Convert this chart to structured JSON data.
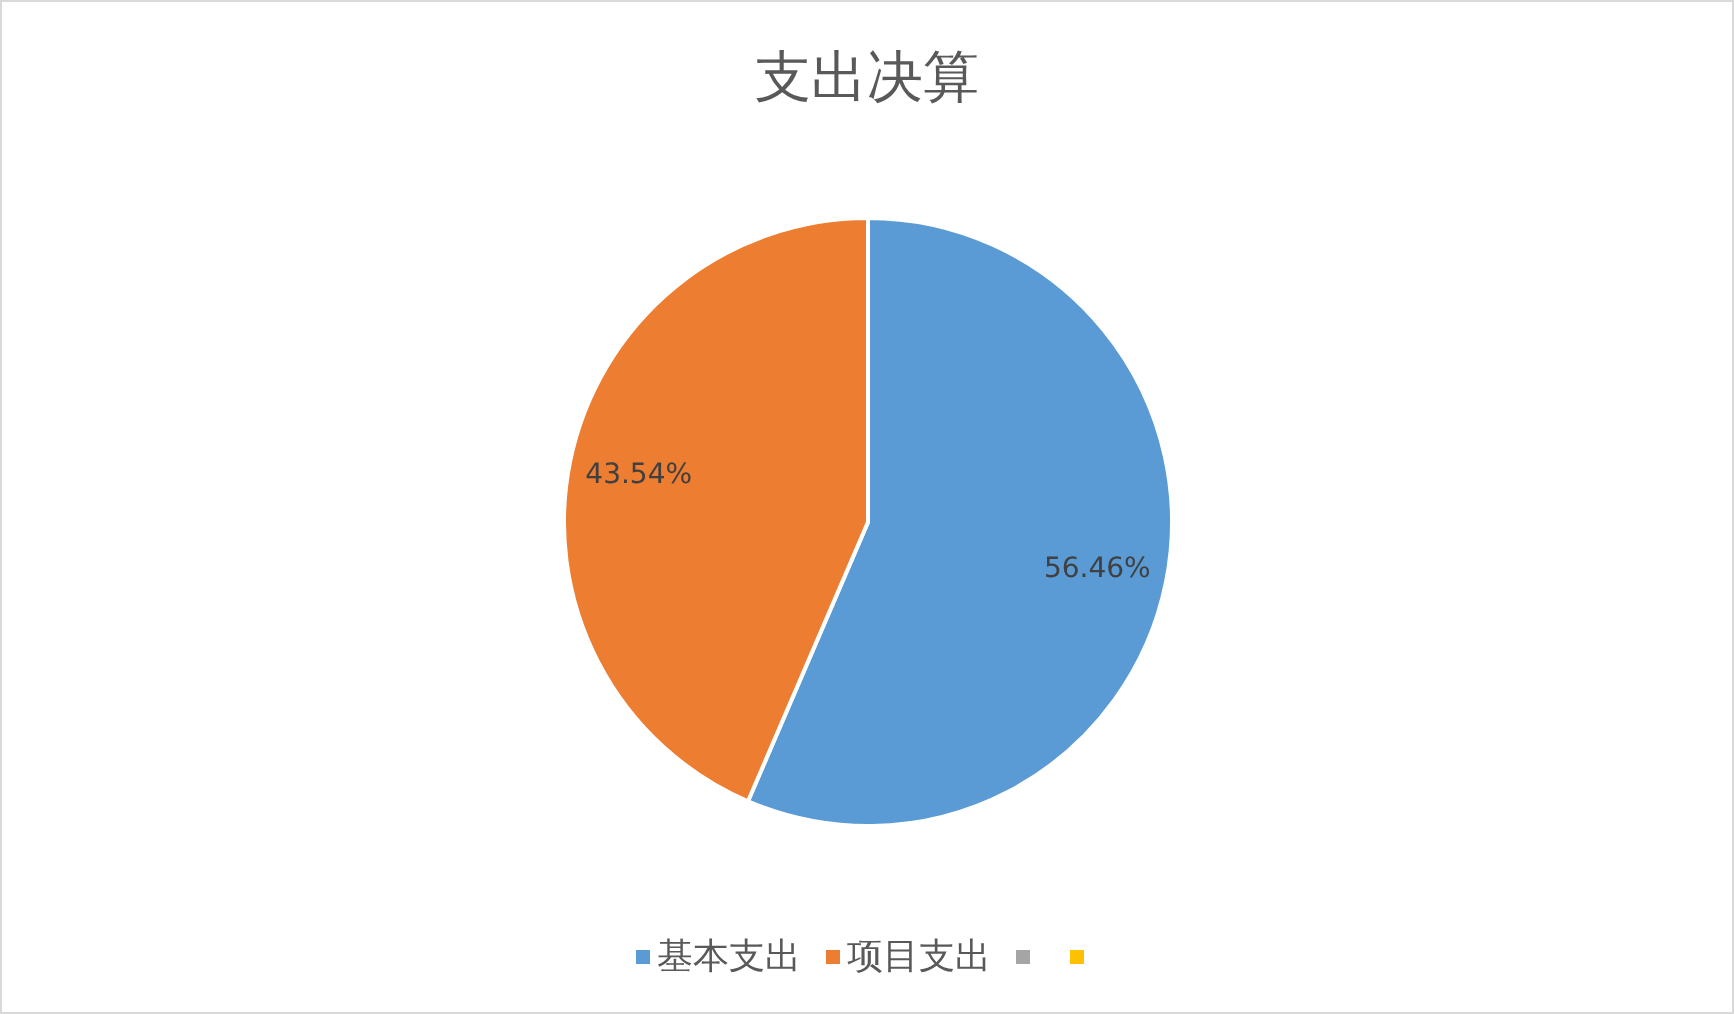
{
  "chart_data": {
    "type": "pie",
    "title": "支出决算",
    "categories": [
      "基本支出",
      "项目支出",
      null,
      null
    ],
    "values": [
      56.46,
      43.54,
      0,
      0
    ],
    "colors": [
      "#5b9bd5",
      "#ed7d31",
      "#a5a5a5",
      "#ffc000"
    ],
    "value_labels": [
      "56.46%",
      "43.54%",
      null,
      null
    ],
    "legend": "bottom"
  }
}
